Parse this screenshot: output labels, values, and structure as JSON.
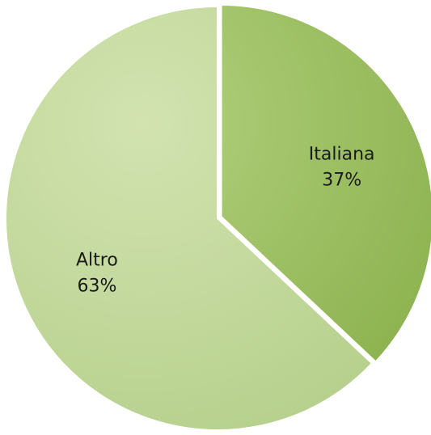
{
  "chart_data": {
    "type": "pie",
    "title": "",
    "slices": [
      {
        "label": "Italiana",
        "value": 37,
        "value_label": "37%",
        "color": "#8db350",
        "highlight": "#b3d07e"
      },
      {
        "label": "Altro",
        "value": 63,
        "value_label": "63%",
        "color": "#b6d08c",
        "highlight": "#d2e3b0"
      }
    ],
    "legend": "none",
    "labels": "inside",
    "start_angle": "12 o'clock",
    "direction": "clockwise"
  }
}
